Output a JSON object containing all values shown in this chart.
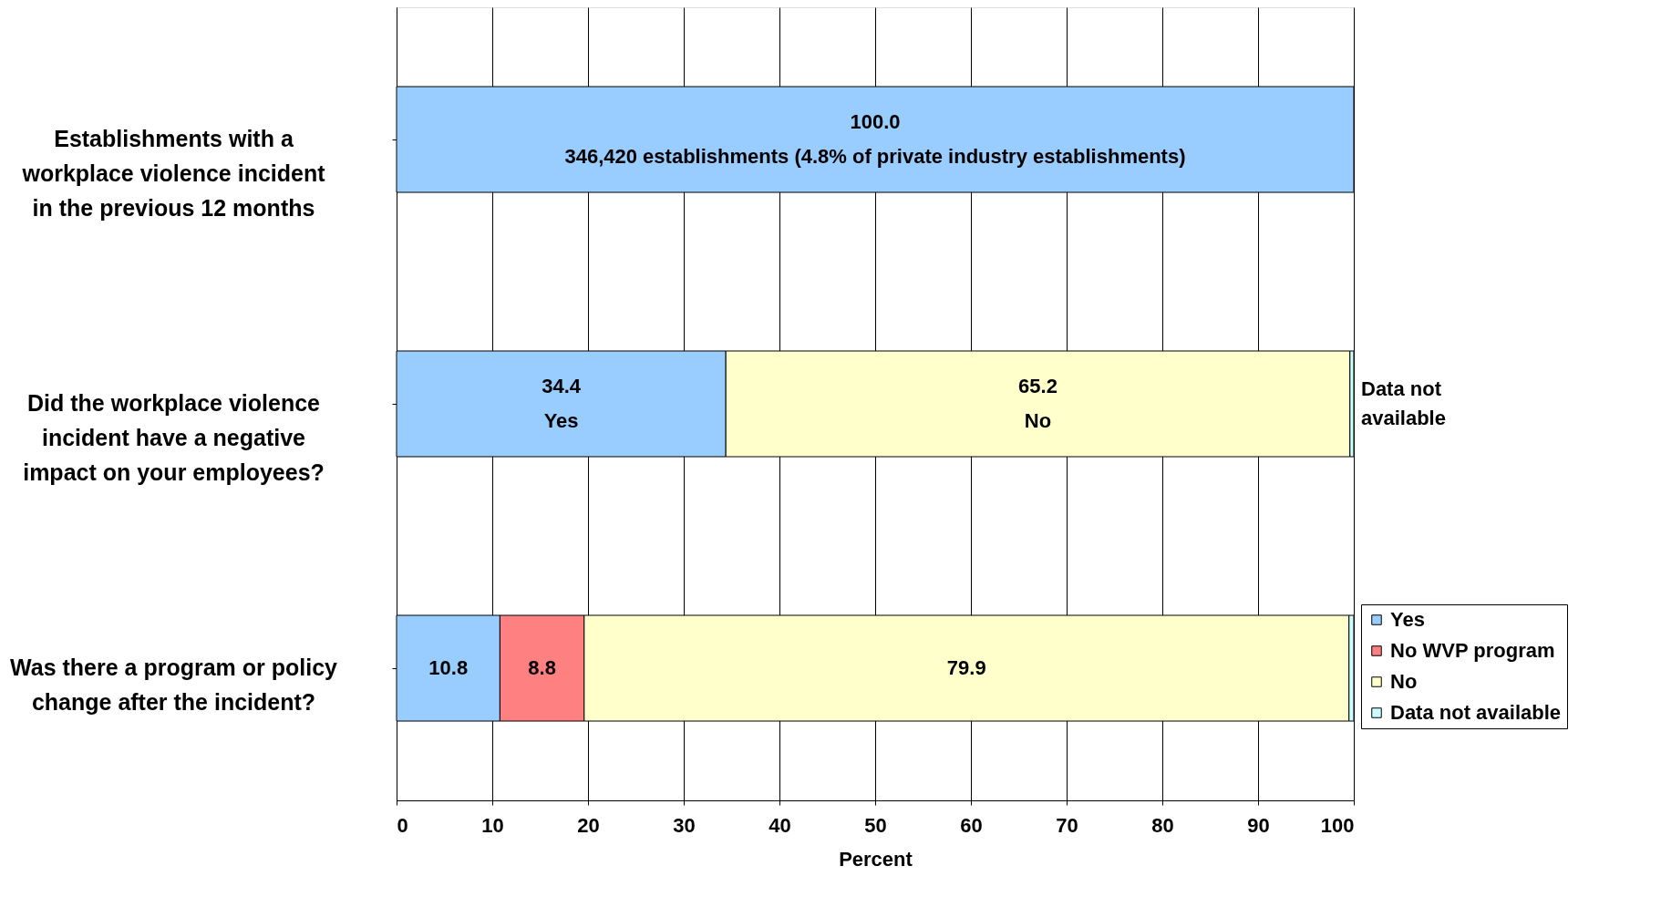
{
  "chart_data": {
    "type": "bar",
    "orientation": "horizontal",
    "stacked": true,
    "categories": [
      "Establishments with a workplace violence incident in the previous 12 months",
      "Did the workplace violence incident have a negative impact on your employees?",
      "Was there a program or policy change after the incident?"
    ],
    "series": [
      {
        "name": "Yes",
        "color": "#99ccff",
        "values": [
          100.0,
          34.4,
          10.8
        ],
        "value_labels": [
          "100.0\n346,420 establishments (4.8% of private industry establishments)",
          "34.4\nYes",
          "10.8"
        ]
      },
      {
        "name": "No WVP program",
        "color": "#ff8080",
        "values": [
          null,
          null,
          8.8
        ],
        "value_labels": [
          null,
          null,
          "8.8"
        ]
      },
      {
        "name": "No",
        "color": "#ffffcc",
        "values": [
          null,
          65.2,
          79.9
        ],
        "value_labels": [
          null,
          "65.2\nNo",
          "79.9"
        ]
      },
      {
        "name": "Data not available",
        "color": "#ccffff",
        "values": [
          null,
          0.4,
          0.5
        ],
        "value_labels": [
          null,
          null,
          null
        ]
      }
    ],
    "xlabel": "Percent",
    "xlim": [
      0,
      100
    ],
    "xticks": [
      0,
      10,
      20,
      30,
      40,
      50,
      60,
      70,
      80,
      90,
      100
    ],
    "grid": "x",
    "legend": "bottom right",
    "annotations": [
      {
        "text": "Data not available",
        "x": 100,
        "y": "Did the workplace violence incident have a negative impact on your employees?"
      }
    ]
  }
}
